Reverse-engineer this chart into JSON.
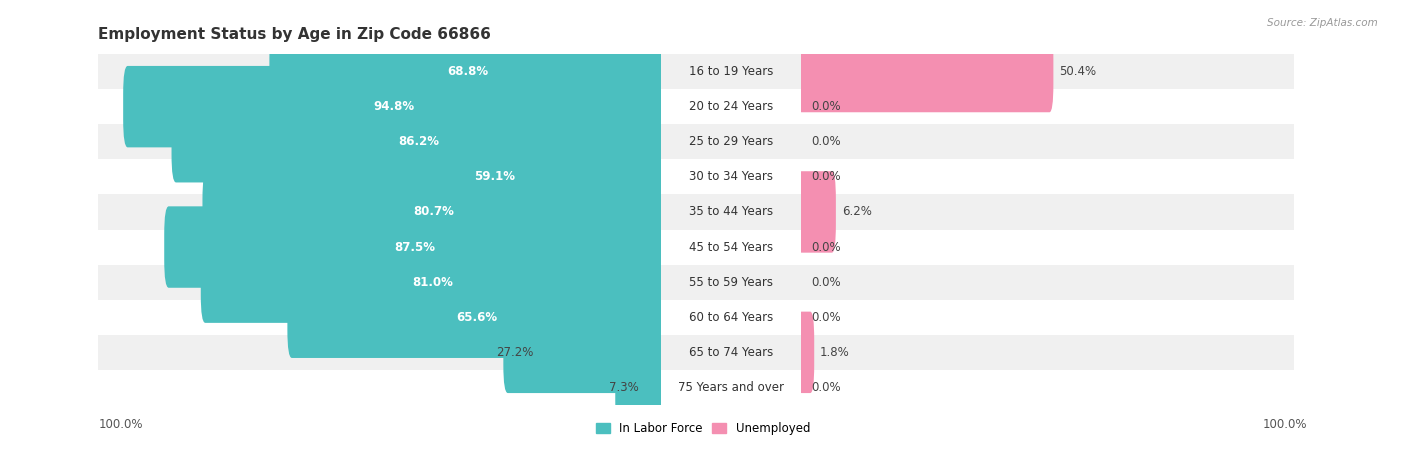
{
  "title": "Employment Status by Age in Zip Code 66866",
  "source": "Source: ZipAtlas.com",
  "categories": [
    "16 to 19 Years",
    "20 to 24 Years",
    "25 to 29 Years",
    "30 to 34 Years",
    "35 to 44 Years",
    "45 to 54 Years",
    "55 to 59 Years",
    "60 to 64 Years",
    "65 to 74 Years",
    "75 Years and over"
  ],
  "labor_force": [
    68.8,
    94.8,
    86.2,
    59.1,
    80.7,
    87.5,
    81.0,
    65.6,
    27.2,
    7.3
  ],
  "unemployed": [
    50.4,
    0.0,
    0.0,
    0.0,
    6.2,
    0.0,
    0.0,
    0.0,
    1.8,
    0.0
  ],
  "labor_force_color": "#4BBFBF",
  "unemployed_color": "#F48FB1",
  "title_fontsize": 11,
  "label_fontsize": 8.5,
  "source_fontsize": 7.5,
  "axis_label_fontsize": 8.5,
  "max_value": 100.0,
  "left_axis_label": "100.0%",
  "right_axis_label": "100.0%",
  "odd_row_color": "#F0F0F0",
  "even_row_color": "#FFFFFF"
}
